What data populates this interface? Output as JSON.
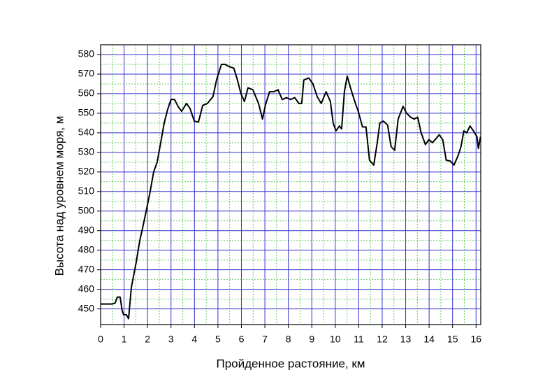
{
  "chart_data": {
    "type": "line",
    "xlabel": "Пройденное растояние, км",
    "ylabel": "Высота над уровнем моря, м",
    "x": [
      0,
      0.5,
      0.62,
      0.71,
      0.83,
      0.92,
      0.98,
      1.1,
      1.19,
      1.31,
      1.52,
      1.67,
      1.82,
      1.96,
      2.11,
      2.26,
      2.41,
      2.56,
      2.71,
      2.86,
      3.0,
      3.15,
      3.3,
      3.45,
      3.66,
      3.81,
      3.99,
      4.17,
      4.35,
      4.55,
      4.79,
      4.94,
      5.15,
      5.3,
      5.45,
      5.68,
      5.83,
      5.98,
      6.13,
      6.28,
      6.49,
      6.73,
      6.9,
      7.02,
      7.2,
      7.38,
      7.56,
      7.74,
      7.92,
      8.1,
      8.27,
      8.45,
      8.57,
      8.66,
      8.87,
      9.05,
      9.23,
      9.4,
      9.61,
      9.79,
      9.91,
      10.03,
      10.18,
      10.27,
      10.39,
      10.51,
      10.65,
      10.83,
      10.98,
      11.16,
      11.31,
      11.46,
      11.64,
      11.79,
      11.9,
      12.05,
      12.23,
      12.38,
      12.53,
      12.68,
      12.89,
      13.04,
      13.21,
      13.36,
      13.51,
      13.66,
      13.84,
      13.99,
      14.14,
      14.29,
      14.43,
      14.58,
      14.73,
      14.91,
      15.06,
      15.24,
      15.36,
      15.48,
      15.6,
      15.74,
      15.89,
      16.04,
      16.1,
      16.19
    ],
    "values": [
      452.5,
      452.5,
      453,
      456,
      456,
      449,
      447,
      447,
      445,
      461,
      474,
      485,
      493,
      501,
      510,
      520,
      525,
      535,
      545,
      552,
      557,
      557,
      553.5,
      551,
      555,
      552.5,
      546,
      545.5,
      554,
      555,
      558.5,
      567,
      575,
      575,
      574,
      573,
      567,
      560,
      556,
      563,
      562,
      555,
      547,
      554,
      561,
      561,
      562,
      557,
      558,
      557,
      558,
      555,
      555,
      567,
      568,
      565,
      558.5,
      555,
      561,
      556,
      545,
      541,
      543.5,
      542,
      561,
      569,
      563,
      556,
      551,
      543,
      543,
      526,
      523.5,
      535,
      545,
      546,
      544,
      533,
      531,
      547,
      553.5,
      550,
      548,
      547,
      548,
      540,
      534,
      536.5,
      535,
      537,
      539,
      536.5,
      526,
      525.5,
      523.5,
      528.5,
      533,
      541,
      540,
      543.5,
      541,
      538,
      532,
      538
    ],
    "color": "#000000",
    "xlim": [
      0,
      16.2
    ],
    "ylim": [
      442,
      585
    ],
    "xticks": [
      0,
      1,
      2,
      3,
      4,
      5,
      6,
      7,
      8,
      9,
      10,
      11,
      12,
      13,
      14,
      15,
      16
    ],
    "yticks": [
      450,
      460,
      470,
      480,
      490,
      500,
      510,
      520,
      530,
      540,
      550,
      560,
      570,
      580
    ],
    "grid": true,
    "grid_color": "#3333cc",
    "minor_grid": true,
    "minor_grid_color": "#66cc66"
  }
}
